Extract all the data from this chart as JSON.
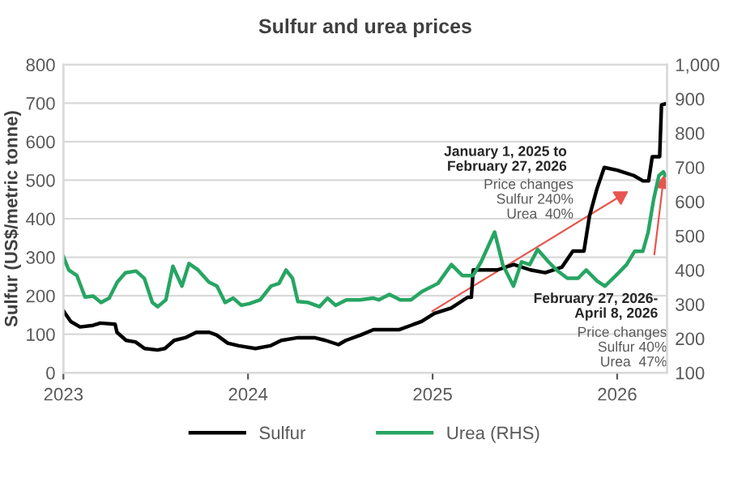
{
  "chart_data": {
    "type": "line",
    "title": "Sulfur and urea prices",
    "ylabel": "Sulfur (US$/metric tonne)",
    "xlim": [
      2023,
      2026.27
    ],
    "xticks": [
      2023,
      2024,
      2025,
      2026
    ],
    "ylim": [
      0,
      800
    ],
    "yticks": [
      0,
      100,
      200,
      300,
      400,
      500,
      600,
      700,
      800
    ],
    "y2lim": [
      100,
      1000
    ],
    "y2ticks": [
      100,
      200,
      300,
      400,
      500,
      600,
      700,
      800,
      900,
      {
        "value": 1000,
        "label": "1,000"
      }
    ],
    "grid": "y",
    "legend": "bottom",
    "series": [
      {
        "name": "Sulfur",
        "color": "#000000",
        "x": [
          2023.0,
          2023.04,
          2023.09,
          2023.16,
          2023.2,
          2023.28,
          2023.29,
          2023.34,
          2023.39,
          2023.44,
          2023.51,
          2023.55,
          2023.6,
          2023.66,
          2023.72,
          2023.79,
          2023.83,
          2023.89,
          2023.95,
          2024.04,
          2024.12,
          2024.18,
          2024.27,
          2024.36,
          2024.42,
          2024.49,
          2024.53,
          2024.61,
          2024.68,
          2024.82,
          2024.94,
          2025.01,
          2025.1,
          2025.19,
          2025.21,
          2025.22,
          2025.35,
          2025.44,
          2025.53,
          2025.61,
          2025.7,
          2025.76,
          2025.82,
          2025.85,
          2025.89,
          2025.93,
          2026.0,
          2026.09,
          2026.14,
          2026.17,
          2026.19,
          2026.23,
          2026.24,
          2026.26
        ],
        "values": [
          161,
          133,
          119,
          123,
          129,
          126,
          105,
          84,
          80,
          63,
          59,
          63,
          84,
          91,
          105,
          105,
          98,
          77,
          70,
          63,
          70,
          84,
          91,
          91,
          84,
          73,
          84,
          98,
          112,
          112,
          133,
          154,
          168,
          196,
          196,
          267,
          267,
          281,
          267,
          260,
          274,
          316,
          316,
          407,
          477,
          533,
          526,
          512,
          498,
          498,
          561,
          561,
          695,
          698
        ]
      },
      {
        "name": "Urea (RHS)",
        "color": "#27a563",
        "axis": "y2",
        "x": [
          2023.0,
          2023.029,
          2023.073,
          2023.117,
          2023.161,
          2023.204,
          2023.248,
          2023.292,
          2023.336,
          2023.394,
          2023.438,
          2023.482,
          2023.511,
          2023.555,
          2023.593,
          2023.642,
          2023.68,
          2023.73,
          2023.788,
          2023.832,
          2023.876,
          2023.92,
          2023.964,
          2024.007,
          2024.066,
          2024.124,
          2024.168,
          2024.206,
          2024.241,
          2024.27,
          2024.328,
          2024.387,
          2024.431,
          2024.474,
          2024.533,
          2024.606,
          2024.679,
          2024.708,
          2024.766,
          2024.825,
          2024.883,
          2024.942,
          2025.029,
          2025.102,
          2025.161,
          2025.219,
          2025.263,
          2025.336,
          2025.38,
          2025.438,
          2025.482,
          2025.526,
          2025.569,
          2025.628,
          2025.672,
          2025.73,
          2025.788,
          2025.832,
          2025.891,
          2025.934,
          2025.993,
          2026.051,
          2026.095,
          2026.139,
          2026.168,
          2026.197,
          2026.226,
          2026.25,
          2026.261
        ],
        "values": [
          439,
          400,
          384,
          321,
          324,
          305,
          318,
          365,
          392,
          397,
          376,
          305,
          293,
          313,
          411,
          353,
          419,
          400,
          365,
          353,
          305,
          318,
          297,
          302,
          313,
          353,
          361,
          400,
          376,
          308,
          305,
          293,
          318,
          297,
          313,
          313,
          318,
          313,
          329,
          313,
          313,
          337,
          361,
          416,
          384,
          384,
          424,
          511,
          416,
          353,
          424,
          416,
          460,
          424,
          400,
          376,
          376,
          400,
          368,
          353,
          384,
          416,
          455,
          455,
          511,
          605,
          676,
          687,
          676
        ]
      }
    ],
    "annotations": [
      "January 1, 2025 to\nFebruary 27, 2026",
      "Price changes\nSulfur 240%\nUrea  40%",
      "February 27, 2026-\nApril 8, 2026",
      "Price changes\nSulfur 40%\nUrea  47%"
    ]
  }
}
